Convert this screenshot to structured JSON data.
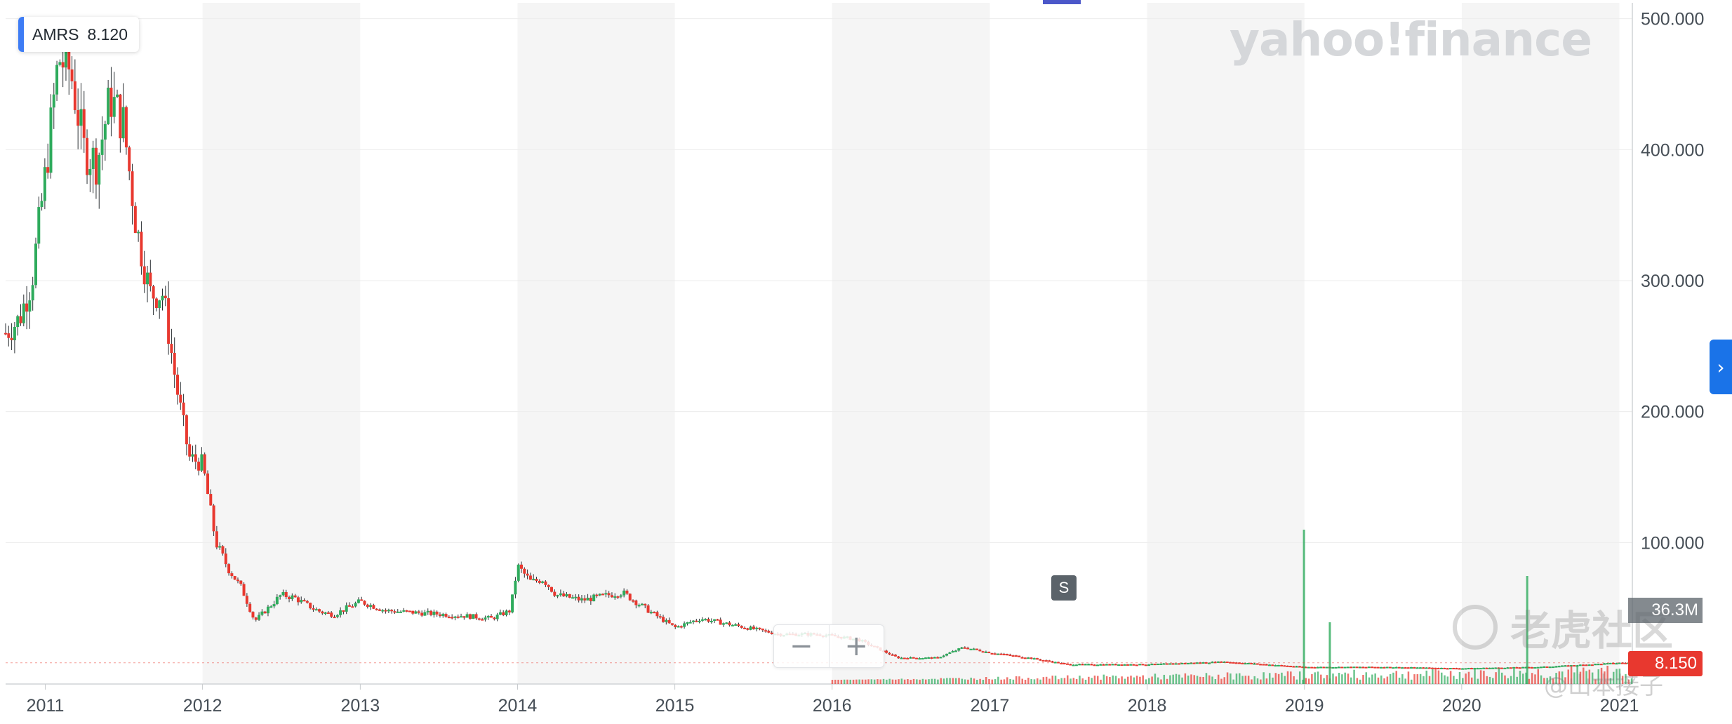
{
  "ticker": {
    "symbol": "AMRS",
    "price": "8.120"
  },
  "watermark": {
    "text": "yahoo!finance"
  },
  "split_marker": {
    "label": "S"
  },
  "zoom": {
    "minus_label": "−",
    "plus_label": "+"
  },
  "nav": {
    "next_icon": "chevron-right-icon",
    "next_glyph": "›"
  },
  "volume_label": "36.3M",
  "last_price_label": "8.150",
  "community_watermark": "老虎社区",
  "author_watermark": "@山本接子",
  "colors": {
    "up": "#2eab5c",
    "down": "#e8382f",
    "band": "#f5f5f5",
    "grid": "#ececec",
    "axis_text": "#464e56",
    "accent": "#1a73e8"
  },
  "chart_data": {
    "type": "candlestick",
    "title": "",
    "ylim": [
      0,
      510
    ],
    "y_ticks": [
      100,
      200,
      300,
      400,
      500
    ],
    "y_tick_labels": [
      "100.000",
      "200.000",
      "300.000",
      "400.000",
      "500.000"
    ],
    "x_tick_labels": [
      "2011",
      "2012",
      "2013",
      "2014",
      "2015",
      "2016",
      "2017",
      "2018",
      "2019",
      "2020",
      "2021"
    ],
    "xlim": [
      "2010-10-01",
      "2021-01-31"
    ],
    "grid": true,
    "series": [
      {
        "values": [
          [
            "2010-10-01",
            260
          ],
          [
            "2010-11-01",
            270
          ],
          [
            "2010-12-01",
            300
          ],
          [
            "2011-01-01",
            380
          ],
          [
            "2011-02-01",
            470
          ],
          [
            "2011-03-01",
            460
          ],
          [
            "2011-04-01",
            400
          ],
          [
            "2011-05-01",
            390
          ],
          [
            "2011-06-01",
            440
          ],
          [
            "2011-07-01",
            420
          ],
          [
            "2011-08-01",
            340
          ],
          [
            "2011-09-01",
            290
          ],
          [
            "2011-10-01",
            290
          ],
          [
            "2011-11-01",
            220
          ],
          [
            "2011-12-01",
            165
          ],
          [
            "2012-01-01",
            160
          ],
          [
            "2012-02-01",
            100
          ],
          [
            "2012-03-01",
            80
          ],
          [
            "2012-04-01",
            65
          ],
          [
            "2012-05-01",
            40
          ],
          [
            "2012-06-01",
            50
          ],
          [
            "2012-07-01",
            60
          ],
          [
            "2012-08-01",
            58
          ],
          [
            "2012-09-01",
            52
          ],
          [
            "2012-10-01",
            47
          ],
          [
            "2012-11-01",
            45
          ],
          [
            "2012-12-01",
            50
          ],
          [
            "2013-01-01",
            55
          ],
          [
            "2013-03-01",
            48
          ],
          [
            "2013-06-01",
            46
          ],
          [
            "2013-09-01",
            44
          ],
          [
            "2013-11-01",
            42
          ],
          [
            "2013-12-15",
            48
          ],
          [
            "2014-01-01",
            82
          ],
          [
            "2014-02-01",
            70
          ],
          [
            "2014-03-01",
            72
          ],
          [
            "2014-04-01",
            60
          ],
          [
            "2014-06-01",
            56
          ],
          [
            "2014-08-01",
            60
          ],
          [
            "2014-09-01",
            62
          ],
          [
            "2014-11-01",
            48
          ],
          [
            "2015-01-01",
            35
          ],
          [
            "2015-03-01",
            42
          ],
          [
            "2015-06-01",
            36
          ],
          [
            "2015-09-01",
            30
          ],
          [
            "2015-12-01",
            30
          ],
          [
            "2016-03-01",
            26
          ],
          [
            "2016-06-01",
            12
          ],
          [
            "2016-09-01",
            12
          ],
          [
            "2016-11-01",
            20
          ],
          [
            "2017-01-01",
            16
          ],
          [
            "2017-04-01",
            12
          ],
          [
            "2017-07-01",
            7
          ],
          [
            "2018-01-01",
            7
          ],
          [
            "2018-07-01",
            9
          ],
          [
            "2019-01-01",
            5
          ],
          [
            "2019-07-01",
            5
          ],
          [
            "2020-01-01",
            4
          ],
          [
            "2020-07-01",
            5
          ],
          [
            "2021-01-01",
            8.15
          ]
        ]
      }
    ],
    "volume": {
      "label": "36.3M",
      "spikes": [
        [
          "2018-12-31",
          1.0
        ],
        [
          "2019-03-01",
          0.4
        ],
        [
          "2020-06-01",
          0.7
        ]
      ]
    },
    "last_price": 8.15
  }
}
